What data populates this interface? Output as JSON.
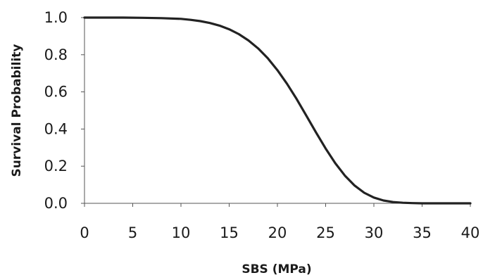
{
  "chart_data": {
    "type": "line",
    "title": "",
    "xlabel": "SBS (MPa)",
    "ylabel": "Survival Probability",
    "xlim": [
      0,
      40
    ],
    "ylim": [
      0,
      1
    ],
    "xticks": [
      0,
      5,
      10,
      15,
      20,
      25,
      30,
      35,
      40
    ],
    "yticks": [
      "0.0",
      "0.2",
      "0.4",
      "0.6",
      "0.8",
      "1.0"
    ],
    "grid": false,
    "legend": "none",
    "line_color": "#222222",
    "series": [
      {
        "x": [
          0,
          2,
          4,
          6,
          8,
          10,
          11,
          12,
          13,
          14,
          15,
          16,
          17,
          18,
          19,
          20,
          21,
          22,
          23,
          24,
          25,
          26,
          27,
          28,
          29,
          30,
          31,
          32,
          33,
          34,
          35,
          36,
          38,
          40
        ],
        "values": [
          1.0,
          1.0,
          1.0,
          0.999,
          0.997,
          0.993,
          0.988,
          0.981,
          0.971,
          0.957,
          0.937,
          0.911,
          0.877,
          0.834,
          0.781,
          0.717,
          0.643,
          0.561,
          0.472,
          0.382,
          0.295,
          0.216,
          0.149,
          0.096,
          0.057,
          0.031,
          0.015,
          0.007,
          0.003,
          0.001,
          0.0,
          0.0,
          0.0,
          0.0
        ]
      }
    ]
  }
}
